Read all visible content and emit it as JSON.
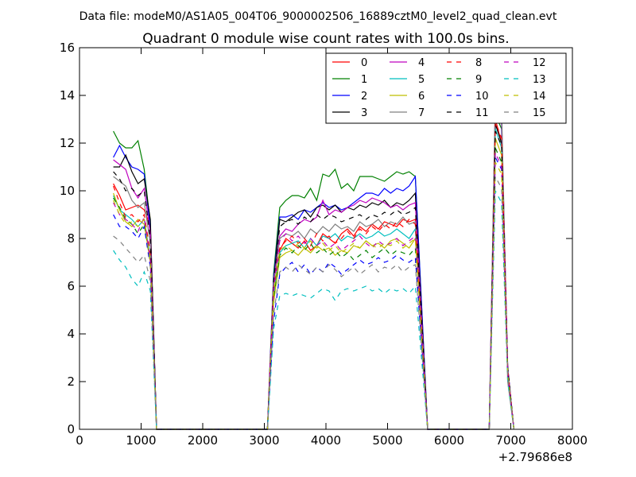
{
  "figure": {
    "suptitle": "Data file: modeM0/AS1A05_004T06_9000002506_16889cztM0_level2_quad_clean.evt",
    "x_offset_label": "+2.79686e8"
  },
  "chart_data": {
    "type": "line",
    "title": "Quadrant 0 module wise count rates with 100.0s bins.",
    "xlabel": "",
    "ylabel": "",
    "xlim": [
      0,
      8000
    ],
    "ylim": [
      0,
      16
    ],
    "x_ticks": [
      0,
      1000,
      2000,
      3000,
      4000,
      5000,
      6000,
      7000,
      8000
    ],
    "y_ticks": [
      0,
      2,
      4,
      6,
      8,
      10,
      12,
      14,
      16
    ],
    "x_offset": 279686000,
    "grid": false,
    "legend": {
      "position": "top-right",
      "columns": 4
    },
    "segments": [
      {
        "x_start": 550,
        "x_step": 100,
        "count": 7,
        "end_x": 1250
      },
      {
        "x_start": 3150,
        "x_step": 100,
        "count": 24,
        "end_x": 5650
      },
      {
        "x_start": 6750,
        "x_step": 100,
        "count": 3,
        "end_x": 7050
      }
    ],
    "gap_x": [
      1350,
      1550,
      1750,
      1950,
      2150,
      2350,
      2550,
      2750,
      2950,
      3050,
      5750,
      5950,
      6150,
      6350,
      6550,
      6650
    ],
    "series": [
      {
        "name": "0",
        "color": "#ff0000",
        "style": "solid",
        "values": [
          [
            10.3,
            9.8,
            9.2,
            9.3,
            9.4,
            9.2,
            8.5
          ],
          [
            5.5,
            7.5,
            8.0,
            7.8,
            7.6,
            7.9,
            7.5,
            7.7,
            8.2,
            8.0,
            7.8,
            8.2,
            8.4,
            8.1,
            8.5,
            8.3,
            8.6,
            8.4,
            8.7,
            8.6,
            8.5,
            8.8,
            8.7,
            8.8
          ],
          [
            13.0,
            12.0,
            2.6
          ]
        ]
      },
      {
        "name": "1",
        "color": "#008000",
        "style": "solid",
        "values": [
          [
            12.5,
            12.0,
            11.8,
            11.8,
            12.1,
            10.9,
            8.6
          ],
          [
            6.5,
            9.3,
            9.6,
            9.8,
            9.8,
            9.7,
            10.1,
            9.6,
            10.7,
            10.6,
            10.9,
            10.1,
            10.3,
            10.0,
            10.6,
            10.6,
            10.6,
            10.5,
            10.4,
            10.6,
            10.8,
            10.7,
            10.8,
            10.6
          ],
          [
            13.2,
            12.6,
            2.6
          ]
        ]
      },
      {
        "name": "2",
        "color": "#0000ff",
        "style": "solid",
        "values": [
          [
            11.4,
            11.9,
            11.4,
            11.0,
            10.9,
            10.7,
            8.4
          ],
          [
            6.3,
            8.9,
            8.9,
            9.0,
            8.8,
            9.2,
            9.1,
            9.3,
            9.5,
            9.3,
            9.4,
            9.2,
            9.3,
            9.5,
            9.7,
            9.9,
            9.9,
            9.8,
            10.1,
            9.9,
            10.1,
            10.0,
            10.2,
            10.6
          ],
          [
            13.6,
            12.9,
            2.6
          ]
        ]
      },
      {
        "name": "3",
        "color": "#000000",
        "style": "solid",
        "values": [
          [
            11.0,
            11.0,
            11.5,
            10.8,
            10.3,
            10.5,
            8.8
          ],
          [
            6.1,
            8.8,
            8.7,
            8.9,
            9.1,
            9.2,
            8.9,
            9.3,
            9.4,
            9.2,
            9.4,
            9.1,
            9.3,
            9.2,
            9.4,
            9.3,
            9.5,
            9.4,
            9.6,
            9.3,
            9.5,
            9.4,
            9.6,
            9.9
          ],
          [
            12.8,
            12.0,
            2.5
          ]
        ]
      },
      {
        "name": "4",
        "color": "#bf00bf",
        "style": "solid",
        "values": [
          [
            11.3,
            11.1,
            10.9,
            10.1,
            9.7,
            10.1,
            8.2
          ],
          [
            6.2,
            8.1,
            8.4,
            8.3,
            8.6,
            8.8,
            8.7,
            8.9,
            9.6,
            9.0,
            9.2,
            9.1,
            9.3,
            9.4,
            9.6,
            9.5,
            9.7,
            9.6,
            9.5,
            9.3,
            9.4,
            9.2,
            9.4,
            9.5
          ],
          [
            13.7,
            13.1,
            2.6
          ]
        ]
      },
      {
        "name": "5",
        "color": "#00bfbf",
        "style": "solid",
        "values": [
          [
            9.8,
            9.2,
            9.0,
            8.8,
            8.5,
            8.8,
            7.2
          ],
          [
            5.6,
            7.4,
            7.7,
            7.8,
            7.9,
            7.6,
            8.0,
            7.7,
            8.1,
            8.0,
            8.2,
            7.9,
            8.1,
            8.0,
            8.2,
            8.0,
            8.1,
            8.3,
            8.1,
            8.2,
            8.4,
            8.2,
            8.0,
            8.4
          ],
          [
            12.6,
            11.8,
            2.5
          ]
        ]
      },
      {
        "name": "6",
        "color": "#bfbf00",
        "style": "solid",
        "values": [
          [
            9.9,
            9.2,
            8.7,
            8.5,
            8.8,
            8.6,
            7.0
          ],
          [
            5.3,
            7.2,
            7.4,
            7.5,
            7.3,
            7.6,
            7.4,
            7.7,
            7.5,
            7.6,
            7.3,
            7.5,
            7.4,
            7.7,
            7.6,
            7.9,
            7.7,
            7.8,
            7.6,
            7.9,
            8.0,
            7.8,
            7.6,
            8.0
          ],
          [
            12.2,
            11.5,
            2.4
          ]
        ]
      },
      {
        "name": "7",
        "color": "#808080",
        "style": "solid",
        "values": [
          [
            10.6,
            10.4,
            10.2,
            9.6,
            9.3,
            9.5,
            7.8
          ],
          [
            6.0,
            8.0,
            8.2,
            8.1,
            8.3,
            8.0,
            8.4,
            8.2,
            8.5,
            8.3,
            8.6,
            8.4,
            8.5,
            8.3,
            8.7,
            8.5,
            8.6,
            8.8,
            8.5,
            8.7,
            8.6,
            8.9,
            8.6,
            8.7
          ],
          [
            14.2,
            13.6,
            2.0
          ]
        ]
      },
      {
        "name": "8",
        "color": "#ff0000",
        "style": "dashed",
        "values": [
          [
            10.2,
            9.5,
            8.9,
            9.0,
            8.7,
            9.0,
            7.4
          ],
          [
            5.8,
            7.6,
            7.9,
            8.1,
            7.8,
            8.0,
            7.7,
            8.2,
            7.9,
            8.1,
            7.8,
            8.0,
            8.3,
            8.0,
            8.4,
            8.2,
            8.5,
            8.3,
            8.6,
            8.4,
            8.7,
            8.5,
            8.8,
            8.6
          ],
          [
            12.9,
            12.2,
            2.5
          ]
        ]
      },
      {
        "name": "9",
        "color": "#008000",
        "style": "dashed",
        "values": [
          [
            9.7,
            9.3,
            8.8,
            8.6,
            8.2,
            8.6,
            7.0
          ],
          [
            5.5,
            7.3,
            7.6,
            7.4,
            7.7,
            7.5,
            7.8,
            7.4,
            7.6,
            7.3,
            7.5,
            7.2,
            7.4,
            7.1,
            7.3,
            7.5,
            7.2,
            7.4,
            7.6,
            7.3,
            7.5,
            7.4,
            7.3,
            7.6
          ],
          [
            11.8,
            11.2,
            2.4
          ]
        ]
      },
      {
        "name": "10",
        "color": "#0000ff",
        "style": "dashed",
        "values": [
          [
            9.0,
            8.5,
            8.5,
            8.3,
            8.0,
            8.5,
            6.8
          ],
          [
            4.5,
            6.5,
            6.8,
            7.0,
            6.6,
            6.9,
            6.5,
            6.8,
            6.6,
            7.0,
            6.8,
            6.5,
            6.7,
            6.9,
            7.1,
            6.9,
            7.0,
            7.2,
            7.0,
            7.1,
            7.3,
            7.1,
            7.0,
            7.2
          ],
          [
            11.4,
            10.9,
            2.3
          ]
        ]
      },
      {
        "name": "11",
        "color": "#000000",
        "style": "dashed",
        "values": [
          [
            10.8,
            10.5,
            10.0,
            10.1,
            9.8,
            10.0,
            8.0
          ],
          [
            6.2,
            8.5,
            8.7,
            8.8,
            8.6,
            8.9,
            8.7,
            9.0,
            8.8,
            9.0,
            8.9,
            8.7,
            8.8,
            8.9,
            9.0,
            8.8,
            9.0,
            8.9,
            9.1,
            9.0,
            9.2,
            9.0,
            9.1,
            9.3
          ],
          [
            12.5,
            11.9,
            2.6
          ]
        ]
      },
      {
        "name": "12",
        "color": "#bf00bf",
        "style": "dashed",
        "values": [
          [
            9.5,
            9.0,
            8.8,
            8.6,
            8.3,
            8.9,
            7.1
          ],
          [
            5.9,
            7.9,
            8.2,
            7.9,
            8.1,
            7.8,
            8.0,
            7.7,
            7.9,
            7.6,
            7.8,
            7.5,
            7.7,
            7.9,
            8.1,
            7.8,
            7.6,
            7.9,
            7.7,
            7.8,
            8.0,
            7.7,
            7.9,
            8.1
          ],
          [
            11.6,
            11.0,
            2.3
          ]
        ]
      },
      {
        "name": "13",
        "color": "#00bfbf",
        "style": "dashed",
        "values": [
          [
            7.5,
            7.1,
            6.8,
            6.3,
            6.0,
            6.6,
            5.8
          ],
          [
            4.2,
            5.6,
            5.7,
            5.6,
            5.7,
            5.6,
            5.5,
            5.7,
            5.9,
            5.8,
            5.4,
            5.8,
            5.9,
            5.8,
            5.9,
            6.0,
            5.8,
            5.9,
            5.7,
            5.9,
            5.8,
            5.9,
            5.7,
            6.0
          ],
          [
            10.0,
            9.5,
            2.0
          ]
        ]
      },
      {
        "name": "14",
        "color": "#bfbf00",
        "style": "dashed",
        "values": [
          [
            9.6,
            9.0,
            8.6,
            8.7,
            8.5,
            8.8,
            7.0
          ],
          [
            5.7,
            7.5,
            7.7,
            7.5,
            7.8,
            7.6,
            7.9,
            7.6,
            7.8,
            7.5,
            7.7,
            7.4,
            7.6,
            7.8,
            7.6,
            7.9,
            7.7,
            7.6,
            7.8,
            7.7,
            7.9,
            7.6,
            7.8,
            8.0
          ],
          [
            11.2,
            10.7,
            2.3
          ]
        ]
      },
      {
        "name": "15",
        "color": "#808080",
        "style": "dashed",
        "values": [
          [
            8.1,
            7.9,
            7.6,
            7.3,
            7.0,
            7.3,
            6.2
          ],
          [
            4.8,
            6.6,
            6.8,
            6.6,
            6.9,
            6.7,
            6.5,
            6.8,
            6.6,
            6.9,
            6.7,
            6.4,
            6.6,
            6.8,
            6.5,
            6.7,
            6.9,
            6.6,
            6.8,
            6.7,
            6.9,
            6.6,
            6.8,
            6.9
          ],
          [
            10.6,
            10.1,
            2.2
          ]
        ]
      }
    ]
  }
}
